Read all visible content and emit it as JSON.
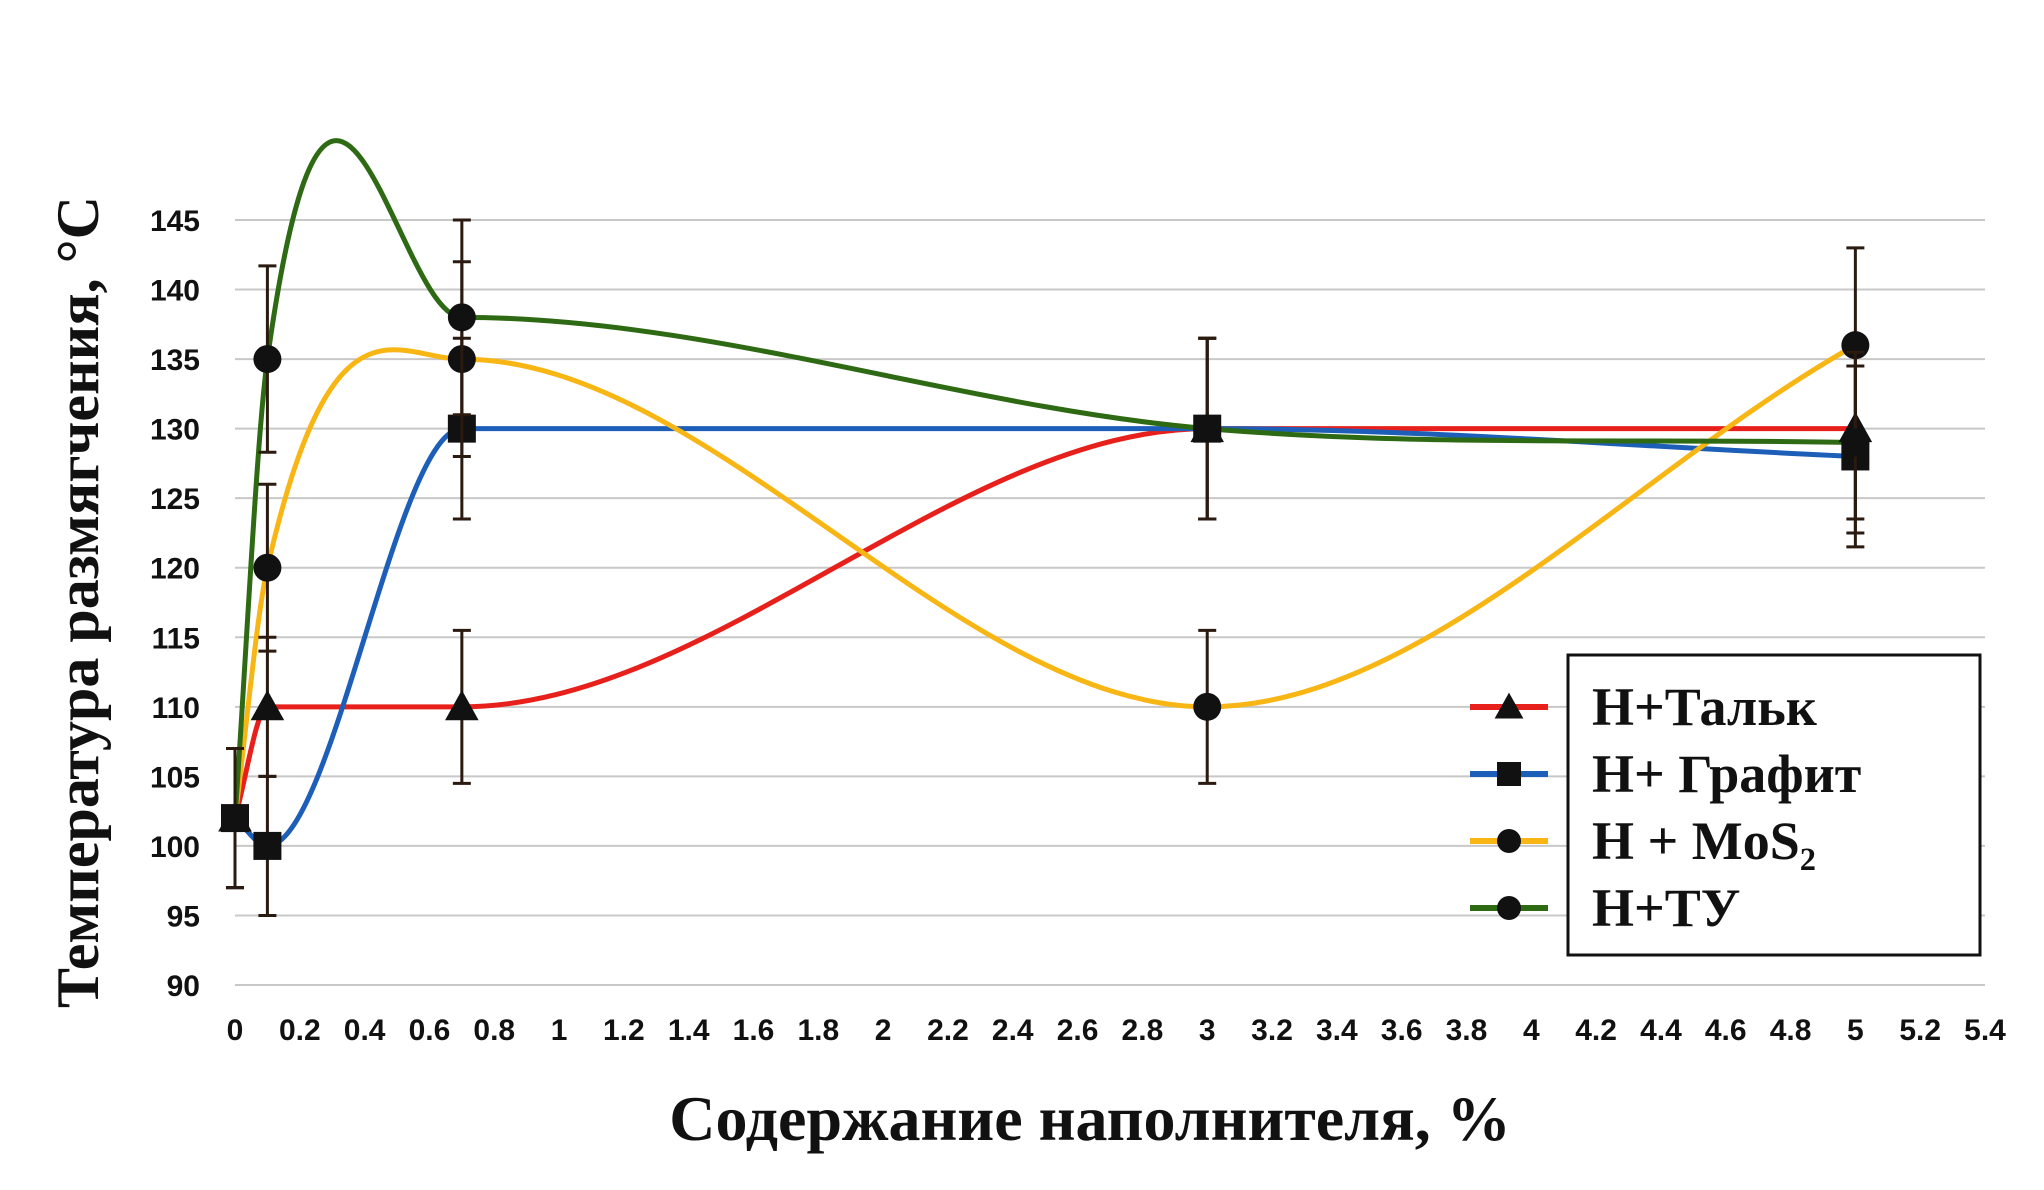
{
  "chart_data": {
    "type": "line",
    "title": "",
    "xlabel": "Содержание наполнителя, %",
    "ylabel": "Температура размягчения, °С",
    "xlim": [
      0,
      5.4
    ],
    "ylim": [
      90,
      145
    ],
    "grid": true,
    "legend_position": "bottom-right",
    "x_ticks": [
      "0",
      "0.2",
      "0.4",
      "0.6",
      "0.8",
      "1",
      "1.2",
      "1.4",
      "1.6",
      "1.8",
      "2",
      "2.2",
      "2.4",
      "2.6",
      "2.8",
      "3",
      "3.2",
      "3.4",
      "3.6",
      "3.8",
      "4",
      "4.2",
      "4.4",
      "4.6",
      "4.8",
      "5",
      "5.2",
      "5.4"
    ],
    "y_ticks": [
      "90",
      "95",
      "100",
      "105",
      "110",
      "115",
      "120",
      "125",
      "130",
      "135",
      "140",
      "145"
    ],
    "series": [
      {
        "name": "Н+Тальк",
        "color": "#e8201c",
        "marker": "triangle",
        "x": [
          0,
          0.1,
          0.7,
          3,
          5
        ],
        "y": [
          102,
          110,
          110,
          130,
          130
        ],
        "err": [
          5,
          5,
          5.5,
          6.5,
          6.5
        ]
      },
      {
        "name": "Н+ Графит",
        "color": "#1d5fb8",
        "marker": "square",
        "x": [
          0,
          0.1,
          0.7,
          3,
          5
        ],
        "y": [
          102,
          100,
          130,
          130,
          128
        ],
        "err": [
          5,
          5,
          6.5,
          6.5,
          6.5
        ]
      },
      {
        "name": "Н + MoS₂",
        "color": "#f8b615",
        "marker": "circle",
        "x": [
          0,
          0.1,
          0.7,
          3,
          5
        ],
        "y": [
          102,
          120,
          135,
          110,
          136
        ],
        "err": [
          5,
          6,
          7,
          5.5,
          7
        ]
      },
      {
        "name": "Н+ТУ",
        "color": "#2e6a14",
        "marker": "circle",
        "x": [
          0,
          0.1,
          0.7,
          3,
          5
        ],
        "y": [
          102,
          135,
          138,
          130,
          129
        ],
        "err": [
          5,
          6.7,
          7,
          6.5,
          6.5
        ]
      }
    ]
  }
}
